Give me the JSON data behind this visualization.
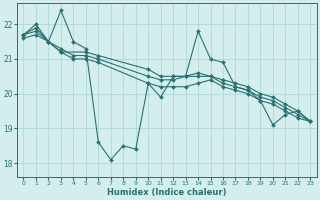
{
  "xlabel": "Humidex (Indice chaleur)",
  "ylabel": "",
  "xlim": [
    -0.5,
    23.5
  ],
  "ylim": [
    17.6,
    22.6
  ],
  "yticks": [
    18,
    19,
    20,
    21,
    22
  ],
  "xticks": [
    0,
    1,
    2,
    3,
    4,
    5,
    6,
    7,
    8,
    9,
    10,
    11,
    12,
    13,
    14,
    15,
    16,
    17,
    18,
    19,
    20,
    21,
    22,
    23
  ],
  "bg_color": "#d4eeee",
  "grid_color": "#aad4d4",
  "line_color": "#2a7070",
  "lines": [
    {
      "x": [
        0,
        1,
        2,
        3,
        4,
        5,
        6,
        7,
        8,
        9,
        10,
        11,
        12,
        13,
        14,
        15,
        16,
        17,
        18,
        19,
        20,
        21,
        22,
        23
      ],
      "y": [
        21.7,
        22.0,
        21.5,
        22.4,
        21.5,
        21.3,
        18.6,
        18.1,
        18.5,
        18.4,
        20.3,
        19.9,
        20.5,
        20.5,
        21.8,
        21.0,
        20.9,
        20.2,
        20.1,
        19.8,
        19.1,
        19.4,
        19.5,
        19.2
      ]
    },
    {
      "x": [
        0,
        1,
        2,
        3,
        5,
        6,
        10,
        11,
        12,
        13,
        14,
        15,
        16,
        17,
        18,
        19,
        20,
        21,
        22,
        23
      ],
      "y": [
        21.7,
        21.9,
        21.5,
        21.2,
        21.2,
        21.1,
        20.7,
        20.5,
        20.5,
        20.5,
        20.6,
        20.5,
        20.4,
        20.3,
        20.2,
        20.0,
        19.9,
        19.7,
        19.5,
        19.2
      ]
    },
    {
      "x": [
        0,
        1,
        2,
        3,
        4,
        5,
        6,
        10,
        11,
        12,
        13,
        14,
        15,
        16,
        17,
        18,
        19,
        20,
        21,
        22,
        23
      ],
      "y": [
        21.7,
        21.8,
        21.5,
        21.3,
        21.1,
        21.1,
        21.0,
        20.5,
        20.4,
        20.4,
        20.5,
        20.5,
        20.5,
        20.3,
        20.2,
        20.1,
        19.9,
        19.8,
        19.6,
        19.4,
        19.2
      ]
    },
    {
      "x": [
        0,
        1,
        2,
        3,
        4,
        5,
        6,
        10,
        11,
        12,
        13,
        14,
        15,
        16,
        17,
        18,
        19,
        20,
        21,
        22,
        23
      ],
      "y": [
        21.6,
        21.7,
        21.5,
        21.2,
        21.0,
        21.0,
        20.9,
        20.3,
        20.2,
        20.2,
        20.2,
        20.3,
        20.4,
        20.2,
        20.1,
        20.0,
        19.8,
        19.7,
        19.5,
        19.3,
        19.2
      ]
    }
  ]
}
